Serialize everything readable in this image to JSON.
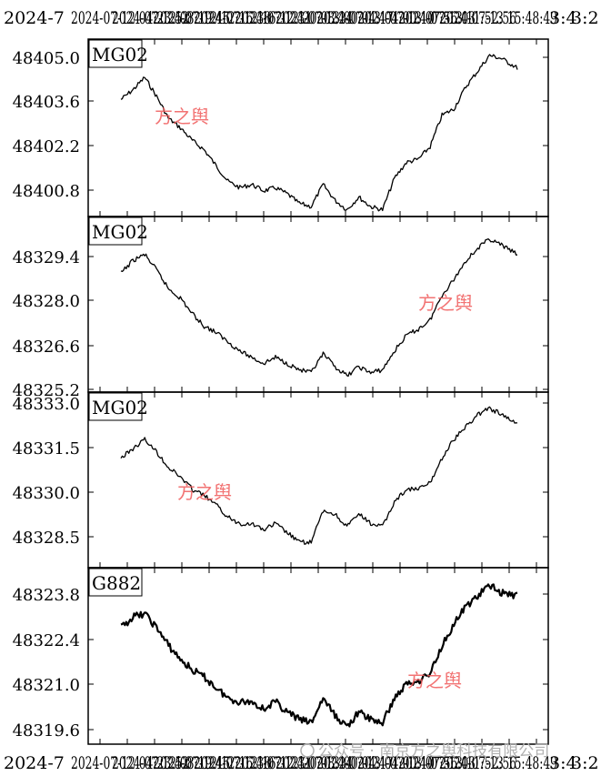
{
  "chart_data": [
    {
      "type": "line",
      "label": "MG02",
      "yticks": [
        "48405.0",
        "48403.6",
        "48402.2",
        "48400.8"
      ],
      "ylim": [
        48400.0,
        48405.4
      ],
      "series": [
        {
          "x": [
            0.0,
            0.03,
            0.06,
            0.09,
            0.12,
            0.15,
            0.18,
            0.21,
            0.24,
            0.27,
            0.3,
            0.33,
            0.36,
            0.39,
            0.42,
            0.45,
            0.48,
            0.51,
            0.54,
            0.57,
            0.6,
            0.63,
            0.66,
            0.69,
            0.72,
            0.75,
            0.78,
            0.81,
            0.84,
            0.87,
            0.9,
            0.93,
            0.96,
            1.0
          ],
          "values": [
            48403.6,
            48403.9,
            48404.3,
            48403.7,
            48403.0,
            48402.7,
            48402.3,
            48402.0,
            48401.5,
            48401.0,
            48400.8,
            48400.9,
            48400.7,
            48400.8,
            48400.6,
            48400.3,
            48400.2,
            48400.9,
            48400.4,
            48400.1,
            48400.5,
            48400.2,
            48400.1,
            48401.1,
            48401.6,
            48401.7,
            48402.1,
            48403.1,
            48403.3,
            48404.0,
            48404.5,
            48405.0,
            48404.9,
            48404.6
          ]
        }
      ]
    },
    {
      "type": "line",
      "label": "MG02",
      "yticks": [
        "48329.4",
        "48328.0",
        "48326.6",
        "48325.2"
      ],
      "ylim": [
        48325.2,
        48330.6
      ],
      "series": [
        {
          "x": [
            0.0,
            0.03,
            0.06,
            0.09,
            0.12,
            0.15,
            0.18,
            0.21,
            0.24,
            0.27,
            0.3,
            0.33,
            0.36,
            0.39,
            0.42,
            0.45,
            0.48,
            0.51,
            0.54,
            0.57,
            0.6,
            0.63,
            0.66,
            0.69,
            0.72,
            0.75,
            0.78,
            0.81,
            0.84,
            0.87,
            0.9,
            0.93,
            0.96,
            1.0
          ],
          "values": [
            48328.9,
            48329.3,
            48329.5,
            48329.0,
            48328.4,
            48328.1,
            48327.6,
            48327.2,
            48327.0,
            48326.7,
            48326.4,
            48326.2,
            48326.0,
            48326.2,
            48326.0,
            48325.8,
            48325.7,
            48326.3,
            48325.9,
            48325.6,
            48325.9,
            48325.7,
            48325.8,
            48326.4,
            48326.9,
            48327.1,
            48327.4,
            48328.2,
            48328.7,
            48329.3,
            48329.7,
            48330.0,
            48329.8,
            48329.5
          ]
        }
      ]
    },
    {
      "type": "line",
      "label": "MG02",
      "yticks": [
        "48333.0",
        "48331.5",
        "48330.0",
        "48328.5"
      ],
      "ylim": [
        48327.6,
        48333.0
      ],
      "series": [
        {
          "x": [
            0.0,
            0.03,
            0.06,
            0.09,
            0.12,
            0.15,
            0.18,
            0.21,
            0.24,
            0.27,
            0.3,
            0.33,
            0.36,
            0.39,
            0.42,
            0.45,
            0.48,
            0.51,
            0.54,
            0.57,
            0.6,
            0.63,
            0.66,
            0.69,
            0.72,
            0.75,
            0.78,
            0.81,
            0.84,
            0.87,
            0.9,
            0.93,
            0.96,
            1.0
          ],
          "values": [
            48331.0,
            48331.3,
            48331.6,
            48331.2,
            48330.7,
            48330.4,
            48330.0,
            48329.8,
            48329.5,
            48329.1,
            48328.9,
            48328.9,
            48328.7,
            48328.9,
            48328.6,
            48328.3,
            48328.3,
            48329.3,
            48329.2,
            48328.8,
            48329.2,
            48328.9,
            48328.8,
            48329.6,
            48330.0,
            48330.0,
            48330.2,
            48331.0,
            48331.6,
            48332.0,
            48332.4,
            48332.6,
            48332.4,
            48332.1
          ]
        }
      ]
    },
    {
      "type": "line",
      "label": "G882",
      "yticks": [
        "48323.8",
        "48322.4",
        "48321.0",
        "48319.6"
      ],
      "ylim": [
        48319.4,
        48324.2
      ],
      "series": [
        {
          "x": [
            0.0,
            0.03,
            0.06,
            0.09,
            0.12,
            0.15,
            0.18,
            0.21,
            0.24,
            0.27,
            0.3,
            0.33,
            0.36,
            0.39,
            0.42,
            0.45,
            0.48,
            0.51,
            0.54,
            0.57,
            0.6,
            0.63,
            0.66,
            0.69,
            0.72,
            0.75,
            0.78,
            0.81,
            0.84,
            0.87,
            0.9,
            0.93,
            0.96,
            1.0
          ],
          "values": [
            48322.6,
            48322.9,
            48323.0,
            48322.6,
            48322.1,
            48321.7,
            48321.4,
            48321.2,
            48320.9,
            48320.6,
            48320.5,
            48320.5,
            48320.3,
            48320.5,
            48320.2,
            48320.0,
            48319.9,
            48320.6,
            48320.1,
            48319.8,
            48320.2,
            48320.0,
            48319.9,
            48320.6,
            48321.0,
            48321.1,
            48321.3,
            48322.1,
            48322.7,
            48323.2,
            48323.5,
            48323.8,
            48323.6,
            48323.5
          ]
        }
      ]
    }
  ],
  "axis": {
    "top_prefix": "2024-7",
    "top_suffix": "3:4",
    "top_suffix2": "3:2",
    "bottom_prefix": "2024-7",
    "bottom_suffix": "3:4",
    "bottom_suffix2": "3:2",
    "date_tick_labels": [
      "2024-07-12 04:23:52",
      "2024-07-12 08:19:45",
      "2024-07-12 12:16:38",
      "2024-07-12 16:12:31",
      "2024-07-12 20:08:24",
      "2024-07-13 00:04:17",
      "2024-07-13 04:00:10",
      "2024-07-13 07:56:03",
      "2024-07-13 11:52:56",
      "2024-07-13 15:48:49"
    ]
  },
  "watermarks": [
    "方之舆",
    "方之舆",
    "方之舆",
    "方之舆"
  ],
  "footer": {
    "text": "公众号 · 南京方之舆科技有限公司"
  },
  "colors": {
    "line": "#000000",
    "watermark": "#f05a5a",
    "footer": "#b0b0b0"
  }
}
